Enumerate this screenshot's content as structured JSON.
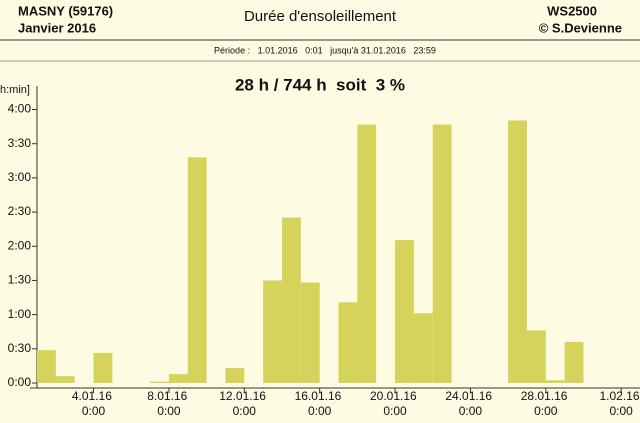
{
  "header": {
    "station": "MASNY (59176)",
    "month": "Janvier  2016",
    "title": "Durée d'ensoleillement",
    "device": "WS2500",
    "author": "© S.Devienne",
    "period": "Période :   1.01.2016   0:01   jusqu'à 31.01.2016   23:59"
  },
  "chart_data": {
    "type": "bar",
    "title": "28 h / 744 h  soit  3 %",
    "y_label": "h:min]",
    "color": "#d6d35c",
    "x": [
      1,
      2,
      3,
      4,
      5,
      6,
      7,
      8,
      9,
      10,
      11,
      12,
      13,
      14,
      15,
      16,
      17,
      18,
      19,
      20,
      21,
      22,
      23,
      24,
      25,
      26,
      27,
      28,
      29,
      30,
      31
    ],
    "values": [
      0.48,
      0.1,
      0,
      0.44,
      0,
      0,
      0.02,
      0.13,
      3.3,
      0,
      0.22,
      0,
      1.5,
      2.42,
      1.47,
      0,
      1.18,
      3.78,
      0,
      2.09,
      1.02,
      3.78,
      0,
      0,
      0,
      3.84,
      0.77,
      0.04,
      0.6,
      0,
      0
    ],
    "xlim": [
      1,
      33
    ],
    "ylim": [
      0,
      4.3
    ],
    "xticks": [
      {
        "value": 4,
        "label": "4.01.16 0:00"
      },
      {
        "value": 8,
        "label": "8.01.16 0:00"
      },
      {
        "value": 12,
        "label": "12.01.16 0:00"
      },
      {
        "value": 16,
        "label": "16.01.16 0:00"
      },
      {
        "value": 20,
        "label": "20.01.16 0:00"
      },
      {
        "value": 24,
        "label": "24.01.16 0:00"
      },
      {
        "value": 28,
        "label": "28.01.16 0:00"
      },
      {
        "value": 32,
        "label": "1.02.16 0:00"
      }
    ],
    "yticks": [
      {
        "value": 0,
        "label": "0:00"
      },
      {
        "value": 0.5,
        "label": "0:30"
      },
      {
        "value": 1,
        "label": "1:00"
      },
      {
        "value": 1.5,
        "label": "1:30"
      },
      {
        "value": 2,
        "label": "2:00"
      },
      {
        "value": 2.5,
        "label": "2:30"
      },
      {
        "value": 3,
        "label": "3:00"
      },
      {
        "value": 3.5,
        "label": "3:30"
      },
      {
        "value": 4,
        "label": "4:00"
      }
    ]
  }
}
